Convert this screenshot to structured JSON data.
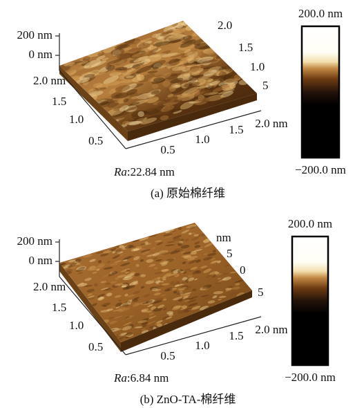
{
  "panels": [
    {
      "z_labels": [
        "200 nm",
        "0 nm"
      ],
      "left_labels": [
        "2.0 nm",
        "1.5",
        "1.0",
        "0.5"
      ],
      "front_labels": [
        "0.5",
        "1.0",
        "1.5",
        "2.0 nm"
      ],
      "back_labels": [
        "2.0",
        "1.5",
        "1.0",
        "5"
      ],
      "colorbar": {
        "max": "200.0 nm",
        "min": "−200.0 nm"
      },
      "ra": {
        "symbol": "Ra",
        "value": ":22.84 nm"
      },
      "caption": "(a) 原始棉纤维"
    },
    {
      "z_labels": [
        "200 nm",
        "0 nm"
      ],
      "left_labels": [
        "2.0 nm",
        "1.5",
        "1.0",
        "0.5"
      ],
      "front_labels": [
        "0.5",
        "1.0",
        "1.5",
        "2.0 nm"
      ],
      "back_labels": [
        "nm",
        "5",
        "0",
        "5"
      ],
      "colorbar": {
        "max": "200.0 nm",
        "min": "−200.0 nm"
      },
      "ra": {
        "symbol": "Ra",
        "value": ":6.84 nm"
      },
      "caption": "(b) ZnO-TA-棉纤维"
    }
  ]
}
